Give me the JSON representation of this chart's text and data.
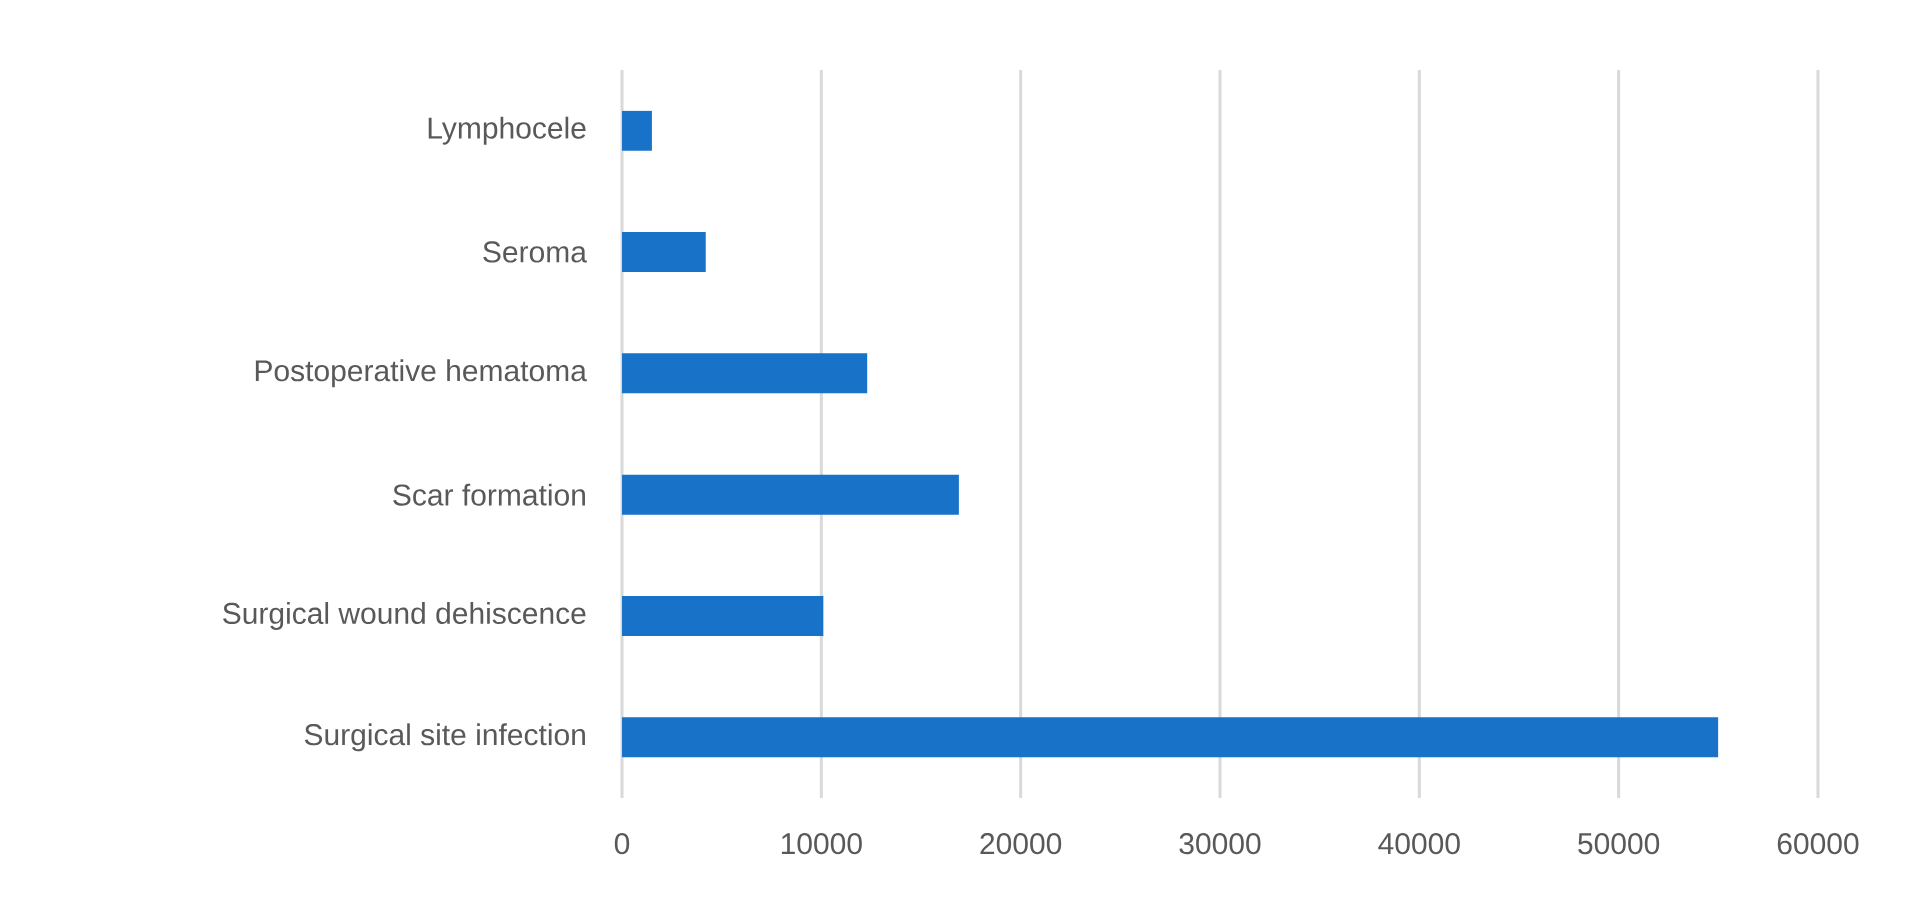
{
  "chart_data": {
    "type": "bar",
    "orientation": "horizontal",
    "categories": [
      "Lymphocele",
      "Seroma",
      "Postoperative hematoma",
      "Scar formation",
      "Surgical wound dehiscence",
      "Surgical site infection"
    ],
    "values": [
      1500,
      4200,
      12300,
      16900,
      10100,
      55000
    ],
    "color": "#1872c8",
    "xlim": [
      0,
      60000
    ],
    "xticks": [
      0,
      10000,
      20000,
      30000,
      40000,
      50000,
      60000
    ],
    "grid": "x"
  }
}
